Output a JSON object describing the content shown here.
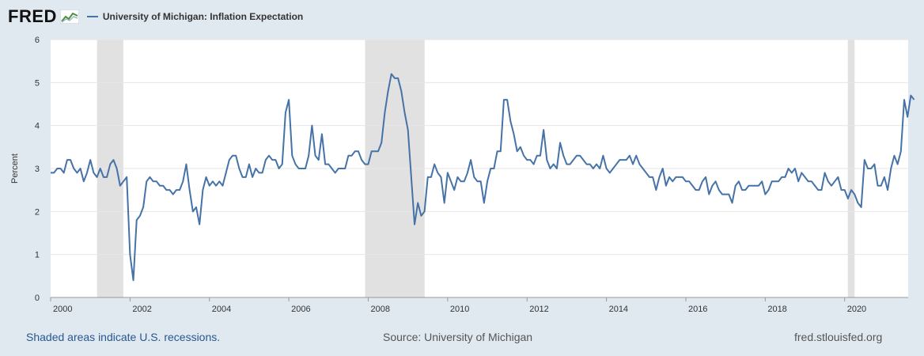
{
  "header": {
    "logo_text": "FRED",
    "legend_label": "University of Michigan: Inflation Expectation"
  },
  "footer": {
    "note": "Shaded areas indicate U.S. recessions.",
    "source": "Source: University of Michigan",
    "site": "fred.stlouisfed.org"
  },
  "colors": {
    "series": "#4572a7",
    "recession": "#e1e1e1",
    "background": "#e1e9f0"
  },
  "chart_data": {
    "type": "line",
    "title": "University of Michigan: Inflation Expectation",
    "xlabel": "",
    "ylabel": "Percent",
    "xlim": [
      2000,
      2021.6
    ],
    "ylim": [
      0,
      6
    ],
    "yticks": [
      0,
      1,
      2,
      3,
      4,
      5,
      6
    ],
    "xticks": [
      2000,
      2002,
      2004,
      2006,
      2008,
      2010,
      2012,
      2014,
      2016,
      2018,
      2020
    ],
    "grid": true,
    "recessions": [
      {
        "start": 2001.17,
        "end": 2001.83
      },
      {
        "start": 2007.92,
        "end": 2009.42
      },
      {
        "start": 2020.08,
        "end": 2020.25
      }
    ],
    "series": [
      {
        "name": "University of Michigan: Inflation Expectation",
        "start": 2000.0,
        "step_months": 1,
        "values": [
          2.9,
          2.9,
          3.0,
          3.0,
          2.9,
          3.2,
          3.2,
          3.0,
          2.9,
          3.0,
          2.7,
          2.9,
          3.2,
          2.9,
          2.8,
          3.0,
          2.8,
          2.8,
          3.1,
          3.2,
          3.0,
          2.6,
          2.7,
          2.8,
          1.0,
          0.4,
          1.8,
          1.9,
          2.1,
          2.7,
          2.8,
          2.7,
          2.7,
          2.6,
          2.6,
          2.5,
          2.5,
          2.4,
          2.5,
          2.5,
          2.7,
          3.1,
          2.5,
          2.0,
          2.1,
          1.7,
          2.5,
          2.8,
          2.6,
          2.7,
          2.6,
          2.7,
          2.6,
          2.9,
          3.2,
          3.3,
          3.3,
          3.0,
          2.8,
          2.8,
          3.1,
          2.8,
          3.0,
          2.9,
          2.9,
          3.2,
          3.3,
          3.2,
          3.2,
          3.0,
          3.1,
          4.3,
          4.6,
          3.3,
          3.1,
          3.0,
          3.0,
          3.0,
          3.3,
          4.0,
          3.3,
          3.2,
          3.8,
          3.1,
          3.1,
          3.0,
          2.9,
          3.0,
          3.0,
          3.0,
          3.3,
          3.3,
          3.4,
          3.4,
          3.2,
          3.1,
          3.1,
          3.4,
          3.4,
          3.4,
          3.6,
          4.3,
          4.8,
          5.2,
          5.1,
          5.1,
          4.8,
          4.3,
          3.9,
          2.8,
          1.7,
          2.2,
          1.9,
          2.0,
          2.8,
          2.8,
          3.1,
          2.9,
          2.8,
          2.2,
          2.9,
          2.7,
          2.5,
          2.8,
          2.7,
          2.7,
          2.9,
          3.2,
          2.8,
          2.7,
          2.7,
          2.2,
          2.7,
          3.0,
          3.0,
          3.4,
          3.4,
          4.6,
          4.6,
          4.1,
          3.8,
          3.4,
          3.5,
          3.3,
          3.2,
          3.2,
          3.1,
          3.3,
          3.3,
          3.9,
          3.2,
          3.0,
          3.1,
          3.0,
          3.6,
          3.3,
          3.1,
          3.1,
          3.2,
          3.3,
          3.3,
          3.2,
          3.1,
          3.1,
          3.0,
          3.1,
          3.0,
          3.3,
          3.0,
          2.9,
          3.0,
          3.1,
          3.2,
          3.2,
          3.2,
          3.3,
          3.1,
          3.3,
          3.1,
          3.0,
          2.9,
          2.8,
          2.8,
          2.5,
          2.8,
          3.0,
          2.6,
          2.8,
          2.7,
          2.8,
          2.8,
          2.8,
          2.7,
          2.7,
          2.6,
          2.5,
          2.5,
          2.7,
          2.8,
          2.4,
          2.6,
          2.7,
          2.5,
          2.4,
          2.4,
          2.4,
          2.2,
          2.6,
          2.7,
          2.5,
          2.5,
          2.6,
          2.6,
          2.6,
          2.6,
          2.7,
          2.4,
          2.5,
          2.7,
          2.7,
          2.7,
          2.8,
          2.8,
          3.0,
          2.9,
          3.0,
          2.7,
          2.9,
          2.8,
          2.7,
          2.7,
          2.6,
          2.5,
          2.5,
          2.9,
          2.7,
          2.6,
          2.7,
          2.8,
          2.5,
          2.5,
          2.3,
          2.5,
          2.4,
          2.2,
          2.1,
          3.2,
          3.0,
          3.0,
          3.1,
          2.6,
          2.6,
          2.8,
          2.5,
          3.0,
          3.3,
          3.1,
          3.4,
          4.6,
          4.2,
          4.7,
          4.6
        ]
      }
    ]
  }
}
